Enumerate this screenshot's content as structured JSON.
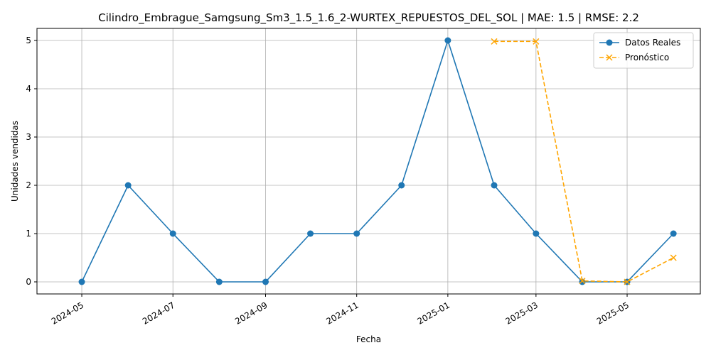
{
  "chart_data": {
    "type": "line",
    "title": "Cilindro_Embrague_Samgsung_Sm3_1.5_1.6_2-WURTEX_REPUESTOS_DEL_SOL | MAE: 1.5 | RMSE: 2.2",
    "xlabel": "Fecha",
    "ylabel": "Unidades vendidas",
    "xlim": [
      "2024-04-01",
      "2025-06-19"
    ],
    "ylim": [
      -0.25,
      5.25
    ],
    "x_ticks": [
      "2024-05",
      "2024-07",
      "2024-09",
      "2024-11",
      "2025-01",
      "2025-03",
      "2025-05"
    ],
    "y_ticks": [
      0,
      1,
      2,
      3,
      4,
      5
    ],
    "grid": true,
    "legend": "top-right",
    "series": [
      {
        "name": "Datos Reales",
        "color": "#1f77b4",
        "marker": "circle",
        "line": "solid",
        "x": [
          "2024-05-01",
          "2024-06-01",
          "2024-07-01",
          "2024-08-01",
          "2024-09-01",
          "2024-10-01",
          "2024-11-01",
          "2024-12-01",
          "2025-01-01",
          "2025-02-01",
          "2025-03-01",
          "2025-04-01",
          "2025-05-01",
          "2025-06-01"
        ],
        "y": [
          0,
          2,
          1,
          0,
          0,
          1,
          1,
          2,
          5,
          2,
          1,
          0,
          0,
          1
        ]
      },
      {
        "name": "Pronóstico",
        "color": "#ffa500",
        "marker": "x",
        "line": "dashed",
        "x": [
          "2025-02-01",
          "2025-03-01",
          "2025-04-01",
          "2025-05-01",
          "2025-06-01"
        ],
        "y": [
          4.98,
          4.98,
          0.02,
          0.0,
          0.5
        ]
      }
    ]
  }
}
